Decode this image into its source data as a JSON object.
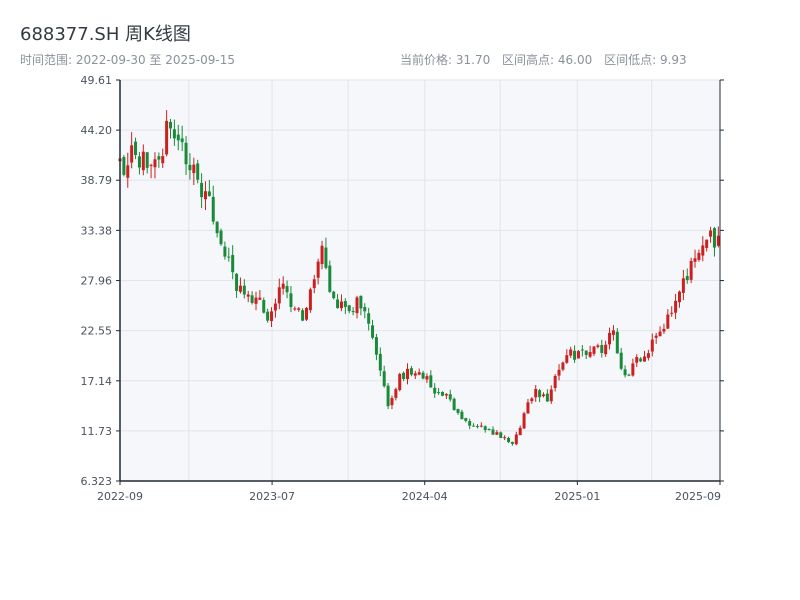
{
  "header": {
    "title": "688377.SH 周K线图",
    "range_text": "时间范围: 2022-09-30 至 2025-09-15",
    "current_price": "当前价格: 31.70",
    "interval_high": "区间高点: 46.00",
    "interval_low": "区间低点: 9.93"
  },
  "colors": {
    "up": "#cc1f1f",
    "down": "#1a8a3a",
    "plot_bg": "#f5f7fa",
    "grid": "#e1e5ea",
    "axis": "#1f2a36"
  },
  "chart_data": {
    "type": "candlestick",
    "title": "688377.SH 周K线图",
    "ylim": [
      6.323,
      49.61
    ],
    "y_ticks": [
      "6.323",
      "11.73",
      "17.14",
      "22.55",
      "27.96",
      "33.38",
      "38.79",
      "44.20",
      "49.61"
    ],
    "x_ticks": [
      "2022-09",
      "2023-07",
      "2024-04",
      "2025-01",
      "2025-09"
    ],
    "x_tick_dates": [
      "2022-09-30",
      "2023-07-01",
      "2024-04-01",
      "2025-01-01",
      "2025-09-15"
    ],
    "x_range": [
      "2022-09-30",
      "2025-09-15"
    ],
    "current_price": 31.7,
    "interval_high": 46.0,
    "interval_low": 9.93,
    "close_trend": [
      [
        "2022-09-30",
        40.5
      ],
      [
        "2022-11-01",
        41.5
      ],
      [
        "2022-11-25",
        39.5
      ],
      [
        "2022-12-10",
        40.5
      ],
      [
        "2022-12-26",
        44.5
      ],
      [
        "2023-01-20",
        42.0
      ],
      [
        "2023-02-10",
        40.0
      ],
      [
        "2023-03-01",
        37.0
      ],
      [
        "2023-03-20",
        35.0
      ],
      [
        "2023-04-05",
        32.0
      ],
      [
        "2023-04-25",
        27.5
      ],
      [
        "2023-05-15",
        25.5
      ],
      [
        "2023-06-05",
        26.0
      ],
      [
        "2023-06-25",
        24.0
      ],
      [
        "2023-07-15",
        27.5
      ],
      [
        "2023-08-05",
        25.5
      ],
      [
        "2023-08-25",
        24.0
      ],
      [
        "2023-09-15",
        29.0
      ],
      [
        "2023-10-01",
        31.0
      ],
      [
        "2023-10-20",
        25.5
      ],
      [
        "2023-11-10",
        24.5
      ],
      [
        "2023-12-01",
        25.5
      ],
      [
        "2023-12-20",
        24.0
      ],
      [
        "2024-01-10",
        18.5
      ],
      [
        "2024-01-25",
        14.5
      ],
      [
        "2024-02-15",
        17.5
      ],
      [
        "2024-03-10",
        18.0
      ],
      [
        "2024-04-01",
        17.5
      ],
      [
        "2024-04-20",
        16.0
      ],
      [
        "2024-05-10",
        15.5
      ],
      [
        "2024-06-01",
        13.5
      ],
      [
        "2024-06-20",
        12.5
      ],
      [
        "2024-07-10",
        12.0
      ],
      [
        "2024-08-01",
        11.5
      ],
      [
        "2024-08-20",
        11.0
      ],
      [
        "2024-09-10",
        10.5
      ],
      [
        "2024-09-25",
        13.0
      ],
      [
        "2024-10-15",
        16.0
      ],
      [
        "2024-11-05",
        15.0
      ],
      [
        "2024-11-25",
        17.5
      ],
      [
        "2024-12-15",
        20.0
      ],
      [
        "2025-01-05",
        20.0
      ],
      [
        "2025-01-25",
        21.0
      ],
      [
        "2025-02-15",
        20.0
      ],
      [
        "2025-03-05",
        23.0
      ],
      [
        "2025-03-25",
        18.0
      ],
      [
        "2025-04-10",
        18.5
      ],
      [
        "2025-05-01",
        20.0
      ],
      [
        "2025-05-25",
        22.5
      ],
      [
        "2025-06-15",
        24.0
      ],
      [
        "2025-07-05",
        26.5
      ],
      [
        "2025-07-25",
        30.0
      ],
      [
        "2025-08-15",
        32.0
      ],
      [
        "2025-09-01",
        32.5
      ],
      [
        "2025-09-15",
        31.7
      ]
    ]
  }
}
